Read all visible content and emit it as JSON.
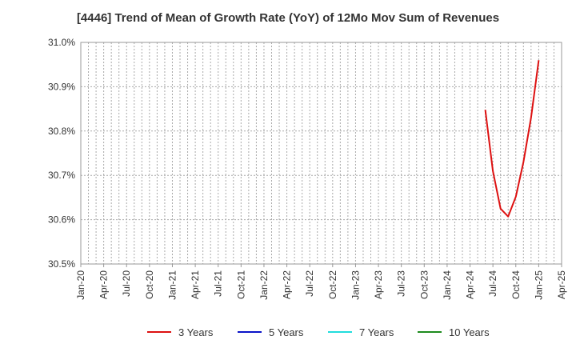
{
  "chart_data": {
    "type": "line",
    "title": "[4446]  Trend of Mean of Growth Rate (YoY) of 12Mo Mov Sum of Revenues",
    "xlabel": "",
    "ylabel": "",
    "x_ticks": [
      "Jan-20",
      "Apr-20",
      "Jul-20",
      "Oct-20",
      "Jan-21",
      "Apr-21",
      "Jul-21",
      "Oct-21",
      "Jan-22",
      "Apr-22",
      "Jul-22",
      "Oct-22",
      "Jan-23",
      "Apr-23",
      "Jul-23",
      "Oct-23",
      "Jan-24",
      "Apr-24",
      "Jul-24",
      "Oct-24",
      "Jan-25",
      "Apr-25"
    ],
    "y_ticks": [
      "30.5%",
      "30.6%",
      "30.7%",
      "30.8%",
      "30.9%",
      "31.0%"
    ],
    "ylim": [
      30.5,
      31.0
    ],
    "grid": true,
    "legend_position": "bottom",
    "series": [
      {
        "name": "3 Years",
        "color": "#dd1111",
        "x": [
          "Jun-24",
          "Jul-24",
          "Aug-24",
          "Sep-24",
          "Oct-24",
          "Nov-24",
          "Dec-24",
          "Jan-25"
        ],
        "values": [
          30.848,
          30.71,
          30.625,
          30.607,
          30.652,
          30.73,
          30.83,
          30.96
        ]
      },
      {
        "name": "5 Years",
        "color": "#0a14c8",
        "x": [],
        "values": []
      },
      {
        "name": "7 Years",
        "color": "#22dddd",
        "x": [],
        "values": []
      },
      {
        "name": "10 Years",
        "color": "#1e8c1e",
        "x": [],
        "values": []
      }
    ]
  }
}
